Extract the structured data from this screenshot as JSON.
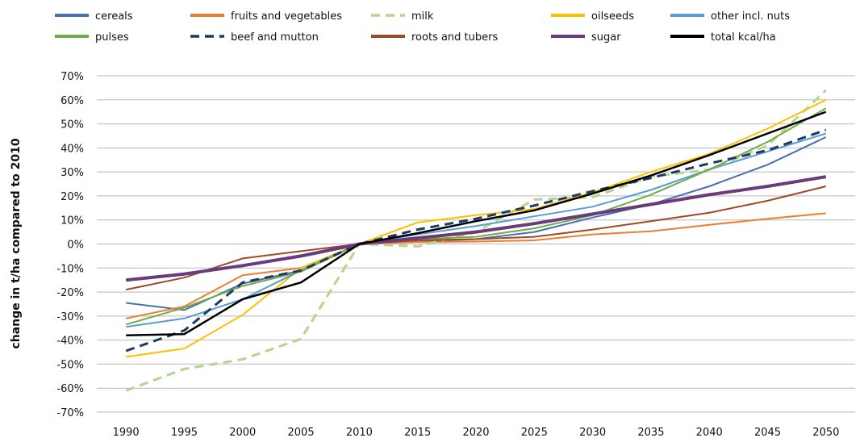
{
  "chart_data": {
    "type": "line",
    "title": "",
    "xlabel": "",
    "ylabel": "change in t/ha compared to 2010",
    "x": [
      1990,
      1995,
      2000,
      2005,
      2010,
      2015,
      2020,
      2025,
      2030,
      2035,
      2040,
      2045,
      2050
    ],
    "ylim": [
      -70,
      70
    ],
    "yticks": [
      -70,
      -60,
      -50,
      -40,
      -30,
      -20,
      -10,
      0,
      10,
      20,
      30,
      40,
      50,
      60,
      70
    ],
    "ytick_labels": [
      "-70%",
      "-60%",
      "-50%",
      "-40%",
      "-30%",
      "-20%",
      "-10%",
      "0%",
      "10%",
      "20%",
      "30%",
      "40%",
      "50%",
      "60%",
      "70%"
    ],
    "xtick_labels": [
      "1990",
      "1995",
      "2000",
      "2005",
      "2010",
      "2015",
      "2020",
      "2025",
      "2030",
      "2035",
      "2040",
      "2045",
      "2050"
    ],
    "grid": true,
    "legend_position": "top",
    "series": [
      {
        "name": "cereals",
        "color": "#4a6fb0",
        "dash": false,
        "width": 2,
        "values": [
          -24.5,
          -27.5,
          -16.5,
          -11,
          0,
          1,
          2,
          5,
          11,
          16.5,
          24,
          33,
          44.5
        ]
      },
      {
        "name": "fruits and vegetables",
        "color": "#ed7d31",
        "dash": false,
        "width": 2,
        "values": [
          -31,
          -26,
          -13,
          -10,
          0,
          0.8,
          1,
          1.5,
          4,
          5.3,
          8,
          10.5,
          12.8
        ]
      },
      {
        "name": "milk",
        "color": "#b2d68c",
        "dash": true,
        "width": 3,
        "values": [
          -61,
          -52,
          -48,
          -39.5,
          0,
          -1,
          5,
          18.5,
          19.5,
          28,
          31,
          41,
          64
        ]
      },
      {
        "name": "oilseeds",
        "color": "#ffc000",
        "dash": false,
        "width": 2,
        "values": [
          -47,
          -43.5,
          -29.5,
          -10,
          0,
          9,
          12,
          14.5,
          21.5,
          30,
          37.5,
          48,
          60
        ]
      },
      {
        "name": "other incl. nuts",
        "color": "#5b9bd5",
        "dash": false,
        "width": 2,
        "values": [
          -34.5,
          -31,
          -23,
          -11,
          0,
          4,
          7.5,
          11.5,
          15.5,
          22.5,
          31,
          38.5,
          46
        ]
      },
      {
        "name": "pulses",
        "color": "#70ad47",
        "dash": false,
        "width": 2,
        "values": [
          -33.5,
          -26.5,
          -17.5,
          -11.5,
          0,
          2,
          3,
          6.5,
          12,
          20.5,
          31,
          42.5,
          56.5
        ]
      },
      {
        "name": "beef and mutton",
        "color": "#1f3864",
        "dash": true,
        "width": 3,
        "values": [
          -44.5,
          -36,
          -16,
          -11,
          0,
          6,
          10.5,
          16,
          22,
          27.5,
          33.5,
          39,
          47.5
        ]
      },
      {
        "name": "roots and tubers",
        "color": "#9e4a25",
        "dash": false,
        "width": 2,
        "values": [
          -19,
          -14,
          -6,
          -3,
          0,
          1.5,
          2,
          3,
          6,
          9.5,
          13,
          18,
          24
        ]
      },
      {
        "name": "sugar",
        "color": "#6a3b7a",
        "dash": false,
        "width": 4,
        "values": [
          -15,
          -12.5,
          -9,
          -5,
          0,
          2.5,
          5,
          8.5,
          12.5,
          16.5,
          20.5,
          24,
          28
        ]
      },
      {
        "name": "total kcal/ha",
        "color": "#000000",
        "dash": false,
        "width": 2.5,
        "values": [
          -38,
          -37.5,
          -23,
          -16,
          0,
          4.5,
          9.5,
          14,
          21,
          28.5,
          37,
          46,
          55
        ]
      }
    ]
  }
}
